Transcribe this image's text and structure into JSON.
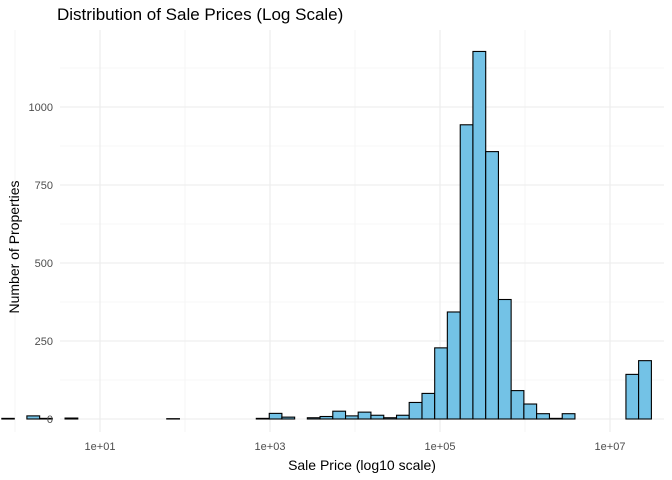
{
  "chart_data": {
    "type": "bar",
    "title": "Distribution of Sale Prices (Log Scale)",
    "xlabel": "Sale Price (log10 scale)",
    "ylabel": "Number of Properties",
    "x_scale": "log10",
    "xlim": [
      0.5,
      30000000
    ],
    "ylim": [
      0,
      1200
    ],
    "x_ticks": [
      10,
      1000,
      100000,
      10000000
    ],
    "x_tick_labels": [
      "1e+01",
      "1e+03",
      "1e+05",
      "1e+07"
    ],
    "y_ticks": [
      0,
      250,
      500,
      750,
      1000
    ],
    "y_tick_labels": [
      "0",
      "250",
      "500",
      "750",
      "1000"
    ],
    "grid": true,
    "bar_fill": "#73C2E6",
    "bar_stroke": "#000000",
    "bins": [
      {
        "x0": 0.7,
        "x1": 0.98,
        "count": 2
      },
      {
        "x0": 1.38,
        "x1": 1.95,
        "count": 10
      },
      {
        "x0": 1.95,
        "x1": 2.75,
        "count": 2
      },
      {
        "x0": 3.88,
        "x1": 5.48,
        "count": 3
      },
      {
        "x0": 61,
        "x1": 86,
        "count": 1
      },
      {
        "x0": 690,
        "x1": 980,
        "count": 2
      },
      {
        "x0": 980,
        "x1": 1380,
        "count": 18
      },
      {
        "x0": 1380,
        "x1": 1950,
        "count": 6
      },
      {
        "x0": 2750,
        "x1": 3880,
        "count": 4
      },
      {
        "x0": 3880,
        "x1": 5480,
        "count": 8
      },
      {
        "x0": 5480,
        "x1": 7740,
        "count": 25
      },
      {
        "x0": 7740,
        "x1": 10900,
        "count": 10
      },
      {
        "x0": 10900,
        "x1": 15400,
        "count": 22
      },
      {
        "x0": 15400,
        "x1": 21800,
        "count": 12
      },
      {
        "x0": 21800,
        "x1": 30800,
        "count": 4
      },
      {
        "x0": 30800,
        "x1": 43400,
        "count": 12
      },
      {
        "x0": 43400,
        "x1": 61400,
        "count": 53
      },
      {
        "x0": 61400,
        "x1": 86600,
        "count": 82
      },
      {
        "x0": 86600,
        "x1": 122000,
        "count": 228
      },
      {
        "x0": 122000,
        "x1": 173000,
        "count": 343
      },
      {
        "x0": 173000,
        "x1": 244000,
        "count": 943
      },
      {
        "x0": 244000,
        "x1": 345000,
        "count": 1178
      },
      {
        "x0": 345000,
        "x1": 487000,
        "count": 857
      },
      {
        "x0": 487000,
        "x1": 687000,
        "count": 383
      },
      {
        "x0": 687000,
        "x1": 970000,
        "count": 91
      },
      {
        "x0": 970000,
        "x1": 1370000,
        "count": 48
      },
      {
        "x0": 1370000,
        "x1": 1940000,
        "count": 17
      },
      {
        "x0": 1940000,
        "x1": 2740000,
        "count": 2
      },
      {
        "x0": 2740000,
        "x1": 3870000,
        "count": 17
      },
      {
        "x0": 15400000,
        "x1": 21700000,
        "count": 143
      },
      {
        "x0": 21700000,
        "x1": 30700000,
        "count": 187
      }
    ]
  }
}
